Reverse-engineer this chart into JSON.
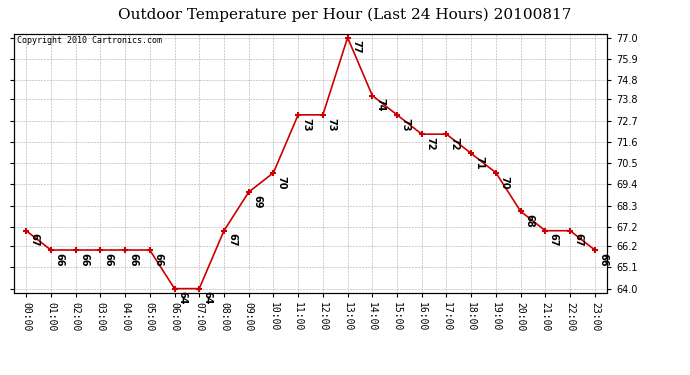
{
  "title": "Outdoor Temperature per Hour (Last 24 Hours) 20100817",
  "copyright": "Copyright 2010 Cartronics.com",
  "hours": [
    "00:00",
    "01:00",
    "02:00",
    "03:00",
    "04:00",
    "05:00",
    "06:00",
    "07:00",
    "08:00",
    "09:00",
    "10:00",
    "11:00",
    "12:00",
    "13:00",
    "14:00",
    "15:00",
    "16:00",
    "17:00",
    "18:00",
    "19:00",
    "20:00",
    "21:00",
    "22:00",
    "23:00"
  ],
  "temps": [
    67,
    66,
    66,
    66,
    66,
    66,
    64,
    64,
    67,
    69,
    70,
    73,
    73,
    77,
    74,
    73,
    72,
    72,
    71,
    70,
    68,
    67,
    67,
    66
  ],
  "ylim_min": 63.8,
  "ylim_max": 77.2,
  "yticks": [
    64.0,
    65.1,
    66.2,
    67.2,
    68.3,
    69.4,
    70.5,
    71.6,
    72.7,
    73.8,
    74.8,
    75.9,
    77.0
  ],
  "line_color": "#cc0000",
  "marker_color": "#cc0000",
  "bg_color": "#ffffff",
  "grid_color": "#aaaaaa",
  "title_fontsize": 11,
  "tick_fontsize": 7,
  "annotation_fontsize": 7,
  "copyright_fontsize": 6
}
